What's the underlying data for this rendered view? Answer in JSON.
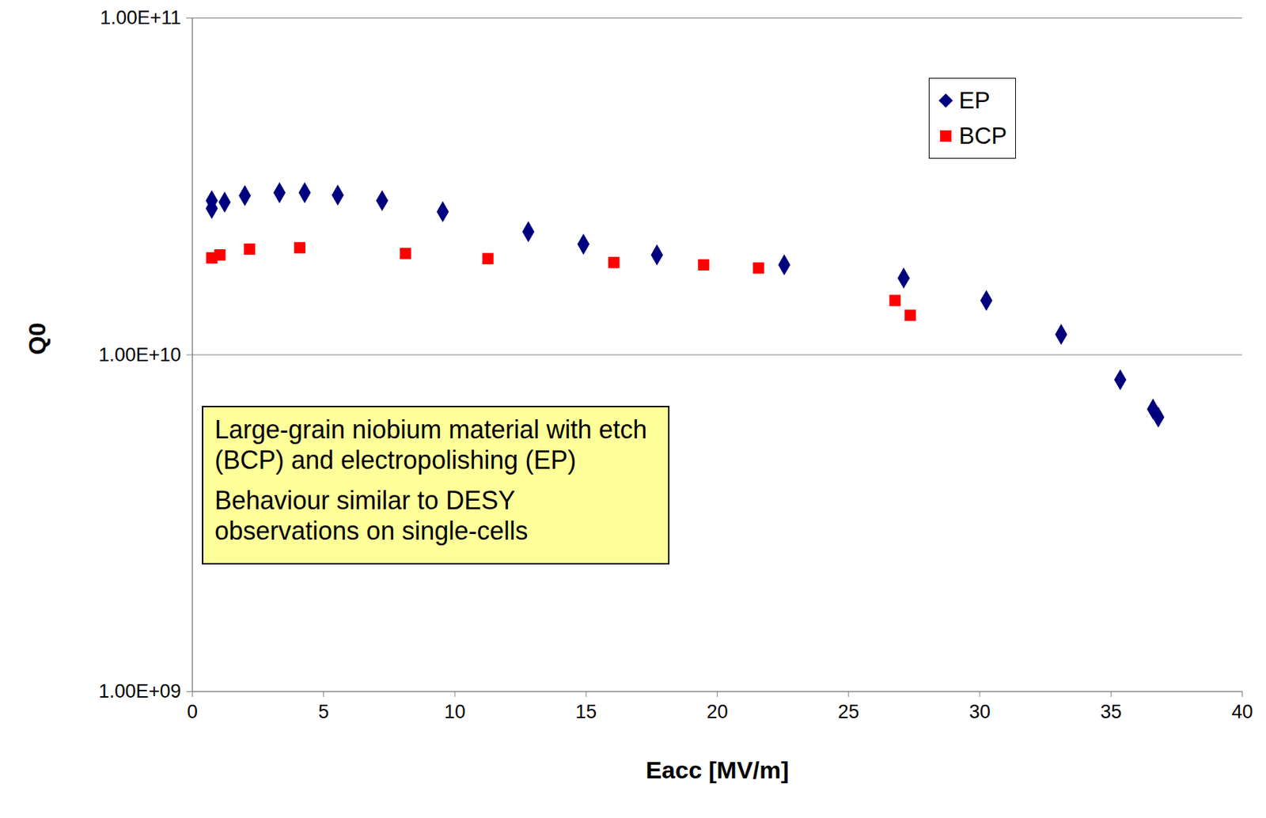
{
  "chart_data": {
    "type": "scatter",
    "x_label": "Eacc [MV/m]",
    "y_label": "Q0",
    "annotation": [
      "Large-grain niobium material with etch (BCP) and electropolishing (EP)",
      "Behaviour similar to DESY observations on single-cells"
    ],
    "log": "y",
    "grid": true,
    "legend": "top-right",
    "xlim": [
      0,
      40
    ],
    "xticks": [
      0,
      5,
      10,
      15,
      20,
      25,
      30,
      35,
      40
    ],
    "ylim": [
      1000000000,
      100000000000
    ],
    "yticks": [
      {
        "value": 1000000000,
        "label": "1.00E+09"
      },
      {
        "value": 10000000000,
        "label": "1.00E+10"
      },
      {
        "value": 100000000000,
        "label": "1.00E+11"
      }
    ],
    "series": [
      {
        "name": "EP",
        "color": "#00007f",
        "marker": "diamond",
        "x": [
          0.74,
          0.74,
          1.23,
          2.0,
          3.32,
          4.28,
          5.54,
          7.23,
          9.54,
          12.8,
          14.9,
          17.7,
          22.55,
          27.1,
          30.25,
          33.1,
          35.35,
          36.6,
          36.8
        ],
        "values": [
          27200000000,
          28700000000,
          28400000000,
          29700000000,
          30300000000,
          30300000000,
          29800000000,
          28700000000,
          26600000000,
          23200000000,
          21300000000,
          19800000000,
          18500000000,
          16900000000,
          14500000000,
          11500000000,
          8430000000,
          6900000000,
          6530000000
        ]
      },
      {
        "name": "BCP",
        "color": "#ff0000",
        "marker": "square",
        "x": [
          0.74,
          1.05,
          2.18,
          4.09,
          8.12,
          11.26,
          16.06,
          19.48,
          21.57,
          26.77,
          27.35
        ],
        "values": [
          19400000000,
          19800000000,
          20600000000,
          20800000000,
          20000000000,
          19300000000,
          18800000000,
          18500000000,
          18100000000,
          14500000000,
          13100000000
        ]
      }
    ]
  }
}
